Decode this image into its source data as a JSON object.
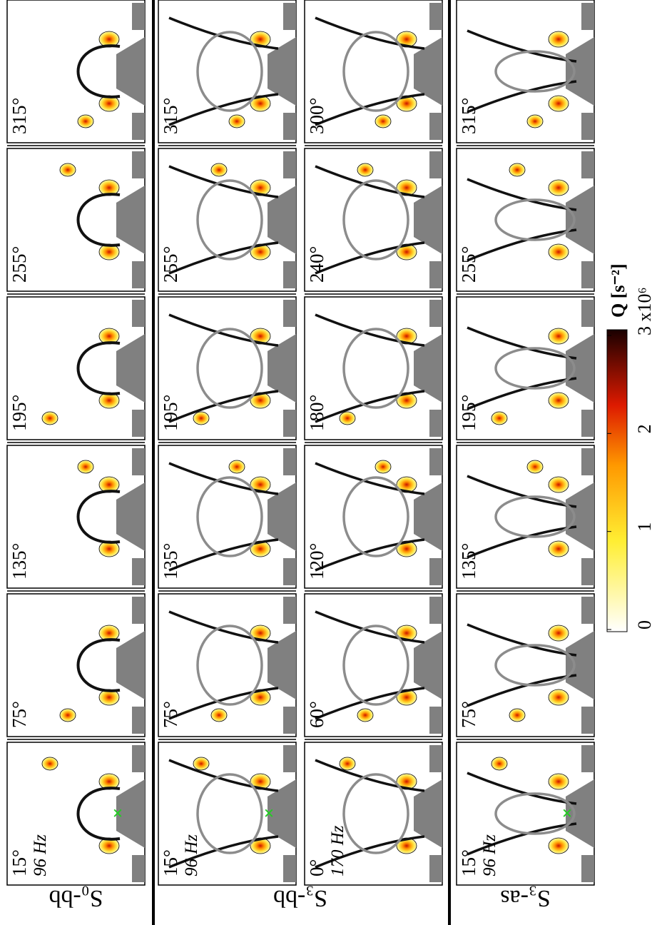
{
  "figure": {
    "groups": [
      {
        "label": "S₀-bb",
        "rows": [
          {
            "panels": [
              {
                "angle": "15°",
                "frequency": "96 Hz"
              },
              {
                "angle": "75°"
              },
              {
                "angle": "135°"
              },
              {
                "angle": "195°"
              },
              {
                "angle": "255°"
              },
              {
                "angle": "315°"
              }
            ]
          }
        ]
      },
      {
        "label": "S₃-bb",
        "rows": [
          {
            "panels": [
              {
                "angle": "15°",
                "frequency": "96 Hz"
              },
              {
                "angle": "75°"
              },
              {
                "angle": "135°"
              },
              {
                "angle": "195°"
              },
              {
                "angle": "255°"
              },
              {
                "angle": "315°"
              }
            ]
          },
          {
            "panels": [
              {
                "angle": "0°",
                "frequency": "170 Hz"
              },
              {
                "angle": "60°"
              },
              {
                "angle": "120°"
              },
              {
                "angle": "180°"
              },
              {
                "angle": "240°"
              },
              {
                "angle": "300°"
              }
            ]
          }
        ]
      },
      {
        "label": "S₃-as",
        "rows": [
          {
            "panels": [
              {
                "angle": "15°",
                "frequency": "96 Hz"
              },
              {
                "angle": "75°"
              },
              {
                "angle": "135°"
              },
              {
                "angle": "195°"
              },
              {
                "angle": "255°"
              },
              {
                "angle": "315°"
              }
            ]
          }
        ]
      }
    ],
    "colorbar": {
      "label": "Q [s⁻²]",
      "lim": [
        0,
        3
      ],
      "ticks": [
        0,
        1,
        2,
        {
          "value": 3,
          "label": "3 x10⁶"
        }
      ]
    }
  }
}
